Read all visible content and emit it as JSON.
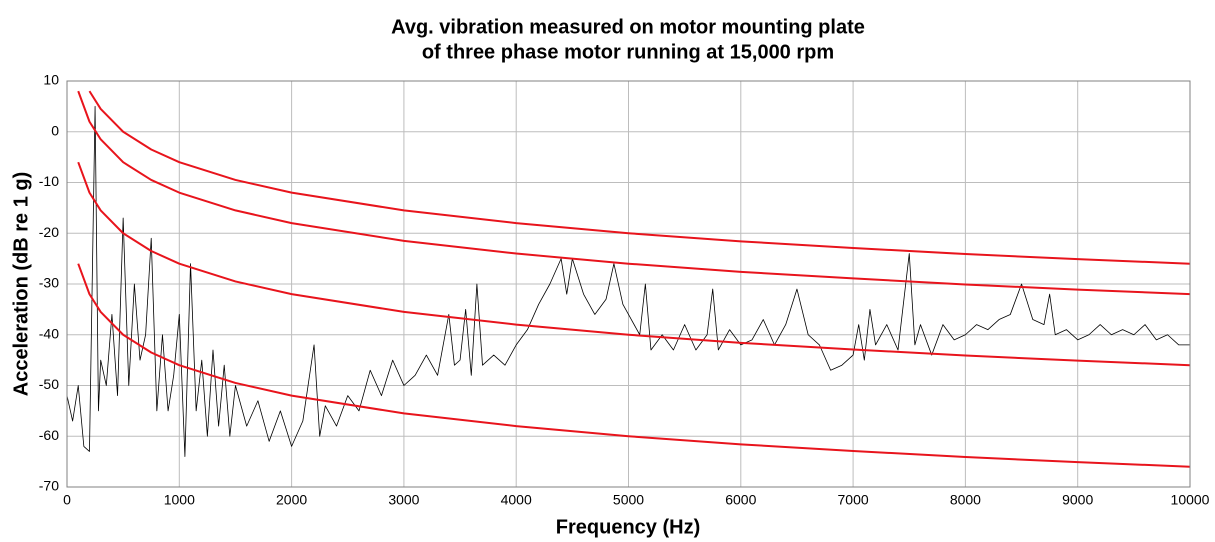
{
  "chart_data": {
    "type": "line",
    "title": [
      "Avg. vibration measured on motor mounting plate",
      "of three phase motor running at 15,000 rpm"
    ],
    "xlabel": "Frequency (Hz)",
    "ylabel": "Acceleration (dB re 1 g)",
    "xlim": [
      0,
      10000
    ],
    "ylim": [
      -70,
      10
    ],
    "xticks": [
      0,
      1000,
      2000,
      3000,
      4000,
      5000,
      6000,
      7000,
      8000,
      9000,
      10000
    ],
    "yticks": [
      -70,
      -60,
      -50,
      -40,
      -30,
      -20,
      -10,
      0,
      10
    ],
    "grid": true,
    "series": [
      {
        "color": "#000000",
        "x": [
          0,
          50,
          100,
          150,
          200,
          250,
          280,
          300,
          350,
          400,
          450,
          500,
          550,
          600,
          650,
          700,
          750,
          800,
          850,
          900,
          950,
          1000,
          1050,
          1100,
          1150,
          1200,
          1250,
          1300,
          1350,
          1400,
          1450,
          1500,
          1600,
          1700,
          1800,
          1900,
          2000,
          2100,
          2200,
          2250,
          2300,
          2400,
          2500,
          2600,
          2700,
          2800,
          2900,
          3000,
          3100,
          3200,
          3300,
          3400,
          3450,
          3500,
          3550,
          3600,
          3650,
          3700,
          3800,
          3900,
          4000,
          4100,
          4200,
          4300,
          4400,
          4450,
          4500,
          4600,
          4700,
          4800,
          4870,
          4950,
          5000,
          5100,
          5150,
          5200,
          5300,
          5400,
          5500,
          5600,
          5700,
          5750,
          5800,
          5900,
          6000,
          6100,
          6200,
          6300,
          6400,
          6500,
          6600,
          6700,
          6800,
          6900,
          7000,
          7050,
          7100,
          7150,
          7200,
          7300,
          7400,
          7500,
          7550,
          7600,
          7700,
          7800,
          7900,
          8000,
          8100,
          8200,
          8300,
          8400,
          8500,
          8600,
          8700,
          8750,
          8800,
          8900,
          9000,
          9100,
          9200,
          9300,
          9400,
          9500,
          9600,
          9700,
          9800,
          9900,
          10000
        ],
        "values": [
          -52,
          -57,
          -50,
          -62,
          -63,
          5,
          -55,
          -45,
          -50,
          -36,
          -52,
          -17,
          -50,
          -30,
          -45,
          -40,
          -21,
          -55,
          -40,
          -55,
          -48,
          -36,
          -64,
          -26,
          -55,
          -45,
          -60,
          -43,
          -58,
          -46,
          -60,
          -50,
          -58,
          -53,
          -61,
          -55,
          -62,
          -57,
          -42,
          -60,
          -54,
          -58,
          -52,
          -55,
          -47,
          -52,
          -45,
          -50,
          -48,
          -44,
          -48,
          -36,
          -46,
          -45,
          -35,
          -48,
          -30,
          -46,
          -44,
          -46,
          -42,
          -39,
          -34,
          -30,
          -25,
          -32,
          -25,
          -32,
          -36,
          -33,
          -26,
          -34,
          -36,
          -40,
          -30,
          -43,
          -40,
          -43,
          -38,
          -43,
          -40,
          -31,
          -43,
          -39,
          -42,
          -41,
          -37,
          -42,
          -38,
          -31,
          -40,
          -42,
          -47,
          -46,
          -44,
          -38,
          -45,
          -35,
          -42,
          -38,
          -43,
          -24,
          -42,
          -38,
          -44,
          -38,
          -41,
          -40,
          -38,
          -39,
          -37,
          -36,
          -30,
          -37,
          -38,
          -32,
          -40,
          -39,
          -41,
          -40,
          -38,
          -40,
          -39,
          -40,
          -38,
          -41,
          -40,
          -42,
          -42
        ]
      },
      {
        "color": "#e8141c",
        "x": [
          200,
          300,
          500,
          750,
          1000,
          1500,
          2000,
          3000,
          4000,
          5000,
          6000,
          7000,
          8000,
          9000,
          10000
        ],
        "values": [
          8,
          4.5,
          0,
          -3.5,
          -6,
          -9.5,
          -12,
          -15.5,
          -18,
          -20,
          -21.6,
          -22.9,
          -24.1,
          -25.1,
          -26
        ]
      },
      {
        "color": "#e8141c",
        "x": [
          100,
          200,
          300,
          500,
          750,
          1000,
          1500,
          2000,
          3000,
          4000,
          5000,
          6000,
          7000,
          8000,
          9000,
          10000
        ],
        "values": [
          8,
          2,
          -1.5,
          -6,
          -9.5,
          -12,
          -15.5,
          -18,
          -21.5,
          -24,
          -26,
          -27.6,
          -28.9,
          -30.1,
          -31.1,
          -32
        ]
      },
      {
        "color": "#e8141c",
        "x": [
          100,
          200,
          300,
          500,
          750,
          1000,
          1500,
          2000,
          3000,
          4000,
          5000,
          6000,
          7000,
          8000,
          9000,
          10000
        ],
        "values": [
          -6,
          -12,
          -15.5,
          -20,
          -23.5,
          -26,
          -29.5,
          -32,
          -35.5,
          -38,
          -40,
          -41.6,
          -42.9,
          -44.1,
          -45.1,
          -46
        ]
      },
      {
        "color": "#e8141c",
        "x": [
          100,
          200,
          300,
          500,
          750,
          1000,
          1500,
          2000,
          3000,
          4000,
          5000,
          6000,
          7000,
          8000,
          9000,
          10000
        ],
        "values": [
          -26,
          -32,
          -35.5,
          -40,
          -43.5,
          -46,
          -49.5,
          -52,
          -55.5,
          -58,
          -60,
          -61.6,
          -62.9,
          -64.1,
          -65.1,
          -66
        ]
      }
    ]
  }
}
